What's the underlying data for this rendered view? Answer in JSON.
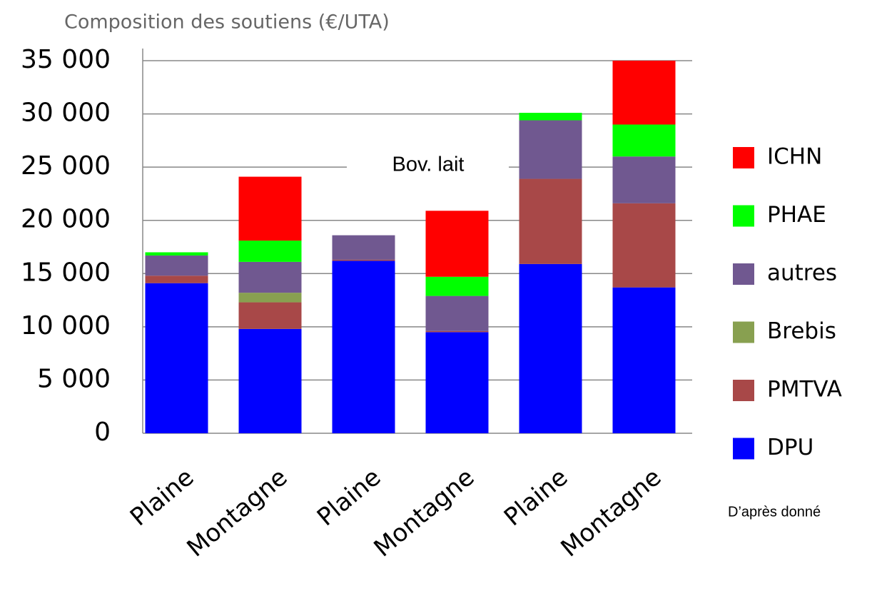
{
  "chart_data": {
    "type": "bar",
    "stacked": true,
    "title": "Composition des soutiens (€/UTA)",
    "annotation": "Bov. lait",
    "note": "D’après donné",
    "categories": [
      "Plaine",
      "Montagne",
      "Plaine",
      "Montagne",
      "Plaine",
      "Montagne"
    ],
    "series": [
      {
        "name": "DPU",
        "color": "#0000ff",
        "values": [
          14100,
          9800,
          16200,
          9500,
          15900,
          13700
        ]
      },
      {
        "name": "PMTVA",
        "color": "#a84848",
        "values": [
          700,
          2500,
          100,
          100,
          8000,
          7900
        ]
      },
      {
        "name": "Brebis",
        "color": "#88a050",
        "values": [
          0,
          900,
          0,
          0,
          0,
          0
        ]
      },
      {
        "name": "autres",
        "color": "#705890",
        "values": [
          1900,
          2900,
          2300,
          3300,
          5500,
          4400
        ]
      },
      {
        "name": "PHAE",
        "color": "#00ff00",
        "values": [
          300,
          2000,
          0,
          1800,
          700,
          3000
        ]
      },
      {
        "name": "ICHN",
        "color": "#ff0000",
        "values": [
          0,
          6000,
          0,
          6200,
          0,
          6000
        ]
      }
    ],
    "ylim": [
      0,
      35000
    ],
    "yticks": [
      0,
      {
        "value": 5000,
        "label": "5 000"
      },
      {
        "value": 10000,
        "label": "10 000"
      },
      {
        "value": 15000,
        "label": "15 000"
      },
      {
        "value": 20000,
        "label": "20 000"
      },
      {
        "value": 25000,
        "label": "25 000"
      },
      {
        "value": 30000,
        "label": "30 000"
      },
      {
        "value": 35000,
        "label": "35 000"
      }
    ],
    "grid": true,
    "legend": "right"
  }
}
